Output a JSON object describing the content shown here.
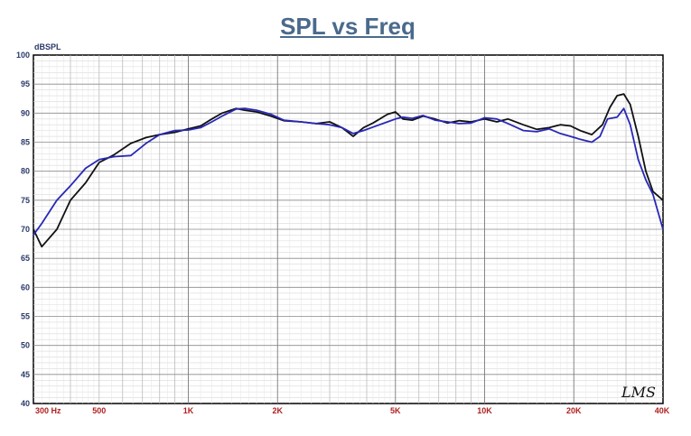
{
  "chart_data": {
    "type": "line",
    "title": "SPL vs Freq",
    "ylabel": "dBSPL",
    "xlabel": "",
    "xscale": "log",
    "xlim": [
      300,
      40000
    ],
    "ylim": [
      40,
      100
    ],
    "grid": true,
    "y_ticks": [
      "100",
      "95",
      "90",
      "85",
      "80",
      "75",
      "70",
      "65",
      "60",
      "55",
      "50",
      "45",
      "40"
    ],
    "x_ticks": [
      {
        "value": 300,
        "label": "300 Hz"
      },
      {
        "value": 500,
        "label": "500"
      },
      {
        "value": 1000,
        "label": "1K"
      },
      {
        "value": 2000,
        "label": "2K"
      },
      {
        "value": 5000,
        "label": "5K"
      },
      {
        "value": 10000,
        "label": "10K"
      },
      {
        "value": 20000,
        "label": "20K"
      },
      {
        "value": 40000,
        "label": "40K"
      }
    ],
    "series": [
      {
        "color": "#111111",
        "x": [
          300,
          320,
          360,
          400,
          450,
          500,
          560,
          640,
          720,
          800,
          900,
          1000,
          1100,
          1200,
          1300,
          1450,
          1550,
          1700,
          1900,
          2100,
          2400,
          2700,
          3000,
          3300,
          3600,
          3900,
          4200,
          4700,
          5000,
          5300,
          5700,
          6200,
          6800,
          7500,
          8200,
          9000,
          10000,
          11000,
          12000,
          13500,
          15000,
          16500,
          18000,
          19500,
          21000,
          23000,
          25000,
          26500,
          28000,
          29500,
          31000,
          33000,
          35000,
          37000,
          40000
        ],
        "y": [
          70,
          67,
          70,
          75,
          78,
          81.5,
          82.8,
          84.8,
          85.8,
          86.3,
          86.7,
          87.3,
          87.8,
          89,
          90,
          90.8,
          90.5,
          90.2,
          89.5,
          88.7,
          88.5,
          88.2,
          88.5,
          87.5,
          86,
          87.5,
          88.3,
          89.8,
          90.2,
          89,
          88.8,
          89.5,
          89,
          88.3,
          88.7,
          88.5,
          89,
          88.5,
          89,
          88,
          87.2,
          87.5,
          88,
          87.8,
          87,
          86.3,
          88,
          91,
          93,
          93.3,
          91.5,
          86,
          80,
          76.5,
          75
        ]
      },
      {
        "color": "#2828b8",
        "x": [
          300,
          320,
          360,
          400,
          450,
          500,
          560,
          640,
          720,
          800,
          900,
          1000,
          1100,
          1200,
          1300,
          1450,
          1550,
          1700,
          1900,
          2100,
          2400,
          2700,
          3000,
          3300,
          3600,
          3900,
          4200,
          4700,
          5000,
          5300,
          5700,
          6200,
          6800,
          7500,
          8200,
          9000,
          10000,
          11000,
          12000,
          13500,
          15000,
          16500,
          18000,
          19500,
          21000,
          23000,
          24500,
          26000,
          28000,
          29500,
          31000,
          33000,
          35000,
          37000,
          40000
        ],
        "y": [
          69,
          71,
          75,
          77.5,
          80.5,
          82,
          82.5,
          82.7,
          84.8,
          86.3,
          87,
          87.1,
          87.5,
          88.5,
          89.5,
          90.7,
          90.8,
          90.5,
          89.8,
          88.8,
          88.5,
          88.2,
          88,
          87.5,
          86.5,
          87,
          87.6,
          88.5,
          89,
          89.3,
          89.1,
          89.6,
          88.8,
          88.5,
          88.2,
          88.3,
          89.2,
          89,
          88.2,
          87,
          86.8,
          87.3,
          86.5,
          86,
          85.5,
          85,
          86,
          89,
          89.3,
          90.8,
          88,
          82,
          78.5,
          76,
          70
        ]
      }
    ],
    "annotations": [
      "LMS"
    ]
  }
}
